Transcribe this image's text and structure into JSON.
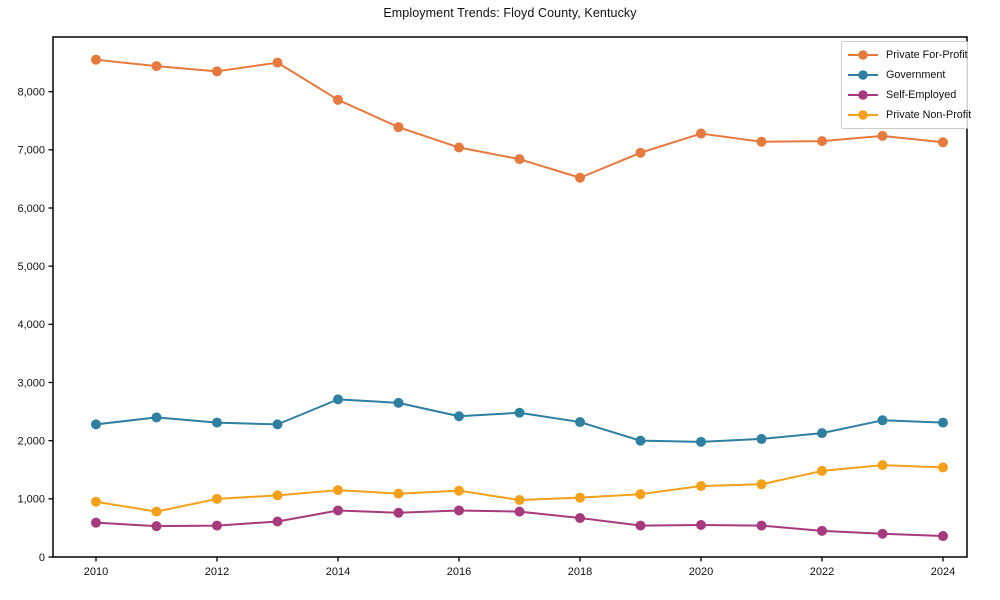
{
  "chart_data": {
    "type": "line",
    "title": "Employment Trends: Floyd County, Kentucky",
    "x": [
      2010,
      2011,
      2012,
      2013,
      2014,
      2015,
      2016,
      2017,
      2018,
      2019,
      2020,
      2021,
      2022,
      2023,
      2024
    ],
    "series": [
      {
        "name": "Private For-Profit",
        "color": "#e5793e",
        "values": [
          8550,
          8440,
          8350,
          8500,
          7860,
          7390,
          7040,
          6840,
          6520,
          6950,
          7280,
          7140,
          7150,
          7240,
          7130
        ]
      },
      {
        "name": "Government",
        "color": "#2e7fa0",
        "values": [
          2280,
          2400,
          2310,
          2280,
          2710,
          2650,
          2420,
          2480,
          2320,
          2000,
          1980,
          2030,
          2130,
          2350,
          2310
        ]
      },
      {
        "name": "Self-Employed",
        "color": "#a63a7c",
        "values": [
          590,
          530,
          540,
          610,
          800,
          760,
          800,
          780,
          670,
          540,
          550,
          540,
          450,
          400,
          360
        ]
      },
      {
        "name": "Private Non-Profit",
        "color": "#f5a01a",
        "values": [
          950,
          780,
          1000,
          1060,
          1150,
          1090,
          1140,
          980,
          1020,
          1080,
          1220,
          1250,
          1480,
          1580,
          1540
        ]
      }
    ],
    "xlabel": "",
    "ylabel": "",
    "xticks": [
      2010,
      2012,
      2014,
      2016,
      2018,
      2020,
      2022,
      2024
    ],
    "yticks": [
      0,
      1000,
      2000,
      3000,
      4000,
      5000,
      6000,
      7000,
      8000
    ],
    "ylim": [
      0,
      8940
    ],
    "grid": false,
    "legend_position": "upper right",
    "marker": "circle",
    "spine_color": "#000000",
    "background": "#ffffff"
  }
}
